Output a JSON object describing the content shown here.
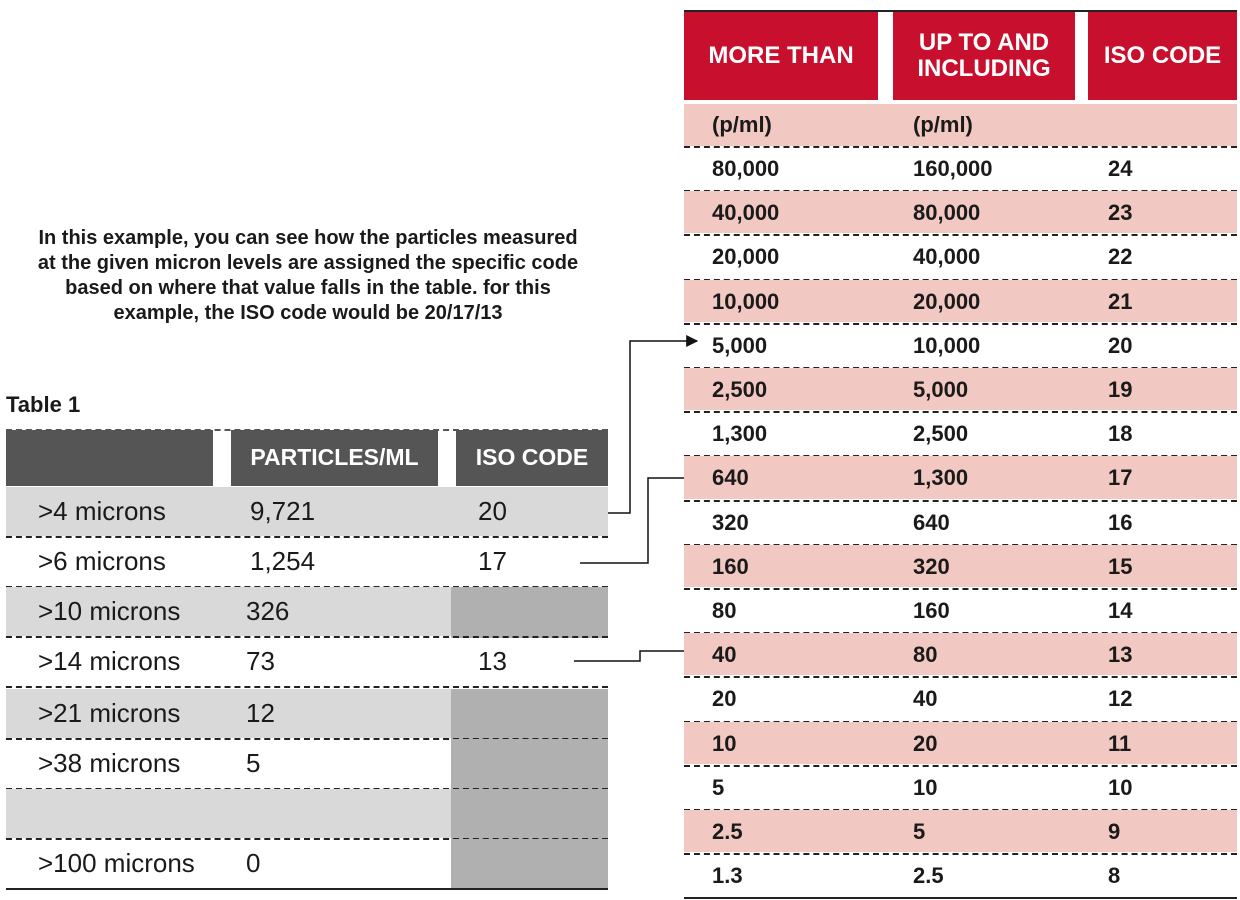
{
  "description": "In this example, you can see how the particles measured at the given micron levels are assigned the specific code based on where that value falls in the table. for this example, the ISO code would be 20/17/13",
  "table1": {
    "title": "Table 1",
    "headers": [
      "PARTICLES/ML",
      "ISO CODE"
    ],
    "rows": [
      [
        ">4 microns",
        "9,721",
        "20"
      ],
      [
        ">6 microns",
        "1,254",
        "17"
      ],
      [
        ">10 microns",
        "326",
        null
      ],
      [
        ">14 microns",
        "73",
        "13"
      ],
      [
        ">21 microns",
        "12",
        null
      ],
      [
        ">38 microns",
        "5",
        null
      ],
      [
        null,
        null,
        null
      ],
      [
        ">100 microns",
        "0",
        null
      ]
    ]
  },
  "table2": {
    "headers": [
      "MORE THAN",
      "UP TO AND INCLUDING",
      "ISO CODE"
    ],
    "units": [
      "(p/ml)",
      "(p/ml)"
    ],
    "rows": [
      [
        "80,000",
        "160,000",
        "24"
      ],
      [
        "40,000",
        "80,000",
        "23"
      ],
      [
        "20,000",
        "40,000",
        "22"
      ],
      [
        "10,000",
        "20,000",
        "21"
      ],
      [
        "5,000",
        "10,000",
        "20"
      ],
      [
        "2,500",
        "5,000",
        "19"
      ],
      [
        "1,300",
        "2,500",
        "18"
      ],
      [
        "640",
        "1,300",
        "17"
      ],
      [
        "320",
        "640",
        "16"
      ],
      [
        "160",
        "320",
        "15"
      ],
      [
        "80",
        "160",
        "14"
      ],
      [
        "40",
        "80",
        "13"
      ],
      [
        "20",
        "40",
        "12"
      ],
      [
        "10",
        "20",
        "11"
      ],
      [
        "5",
        "10",
        "10"
      ],
      [
        "2.5",
        "5",
        "9"
      ],
      [
        "1.3",
        "2.5",
        "8"
      ]
    ]
  }
}
